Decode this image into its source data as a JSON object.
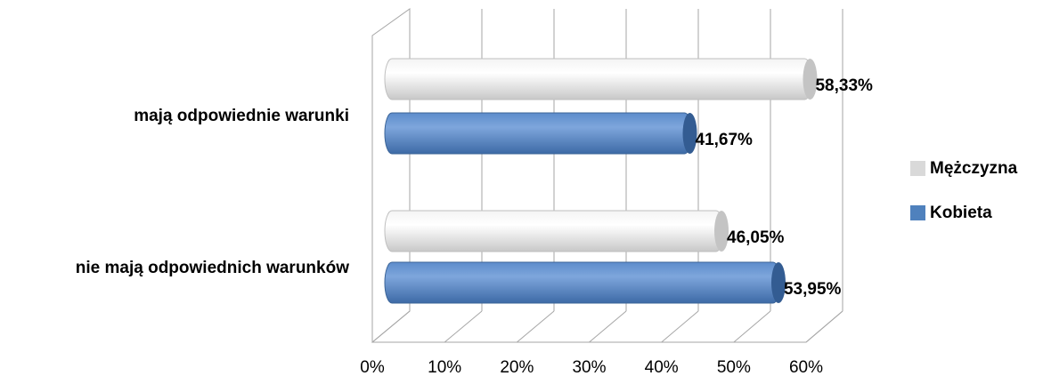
{
  "chart_data": {
    "type": "bar",
    "orientation": "horizontal",
    "categories": [
      "mają odpowiednie warunki",
      "nie mają odpowiednich warunków"
    ],
    "series": [
      {
        "name": "Mężczyzna",
        "color": "#d9d9d9",
        "values": [
          58.33,
          46.05
        ],
        "value_labels": [
          "58,33%",
          "46,05%"
        ]
      },
      {
        "name": "Kobieta",
        "color": "#4f81bd",
        "values": [
          41.67,
          53.95
        ],
        "value_labels": [
          "41,67%",
          "53,95%"
        ]
      }
    ],
    "xlim": [
      0,
      60
    ],
    "xticks": [
      {
        "value": 0,
        "label": "0%"
      },
      {
        "value": 10,
        "label": "10%"
      },
      {
        "value": 20,
        "label": "20%"
      },
      {
        "value": 30,
        "label": "30%"
      },
      {
        "value": 40,
        "label": "40%"
      },
      {
        "value": 50,
        "label": "50%"
      },
      {
        "value": 60,
        "label": "60%"
      }
    ],
    "grid": true,
    "legend": "right"
  }
}
